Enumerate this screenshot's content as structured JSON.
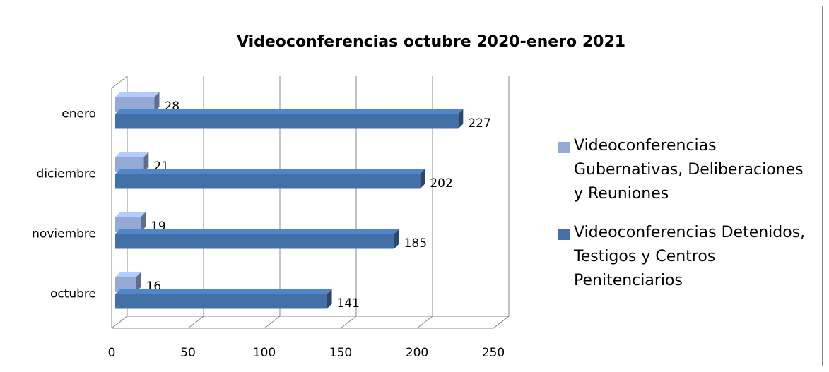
{
  "chart_data": {
    "type": "bar",
    "orientation": "horizontal",
    "title": "Videoconferencias octubre 2020-enero 2021",
    "categories": [
      "octubre",
      "noviembre",
      "diciembre",
      "enero"
    ],
    "series": [
      {
        "name": "Videoconferencias Gubernativas, Deliberaciones y Reuniones",
        "color": "#95a9d5",
        "values": [
          16,
          19,
          21,
          28
        ]
      },
      {
        "name": "Videoconferencias Detenidos, Testigos y Centros Penitenciarios",
        "color": "#4470a8",
        "values": [
          141,
          185,
          202,
          227
        ]
      }
    ],
    "xlim": [
      0,
      250
    ],
    "xticks": [
      0,
      50,
      100,
      150,
      200,
      250
    ],
    "grid": true,
    "legend": "right"
  }
}
